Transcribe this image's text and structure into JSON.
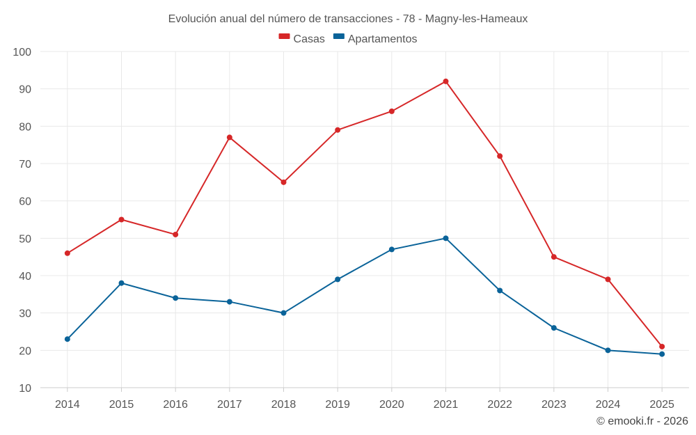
{
  "chart_data": {
    "type": "line",
    "title": "Evolución anual del número de transacciones - 78 - Magny-les-Hameaux",
    "categories": [
      "2014",
      "2015",
      "2016",
      "2017",
      "2018",
      "2019",
      "2020",
      "2021",
      "2022",
      "2023",
      "2024",
      "2025"
    ],
    "series": [
      {
        "name": "Casas",
        "color": "#d62728",
        "values": [
          46,
          55,
          51,
          77,
          65,
          79,
          84,
          92,
          72,
          45,
          39,
          21
        ]
      },
      {
        "name": "Apartamentos",
        "color": "#0a6399",
        "values": [
          23,
          38,
          34,
          33,
          30,
          39,
          47,
          50,
          36,
          26,
          20,
          19
        ]
      }
    ],
    "ylim": [
      10,
      100
    ],
    "yticks": [
      10,
      20,
      30,
      40,
      50,
      60,
      70,
      80,
      90,
      100
    ],
    "grid": true,
    "legend_position": "top-center",
    "xlabel": "",
    "ylabel": ""
  },
  "credit": "© emooki.fr - 2026"
}
